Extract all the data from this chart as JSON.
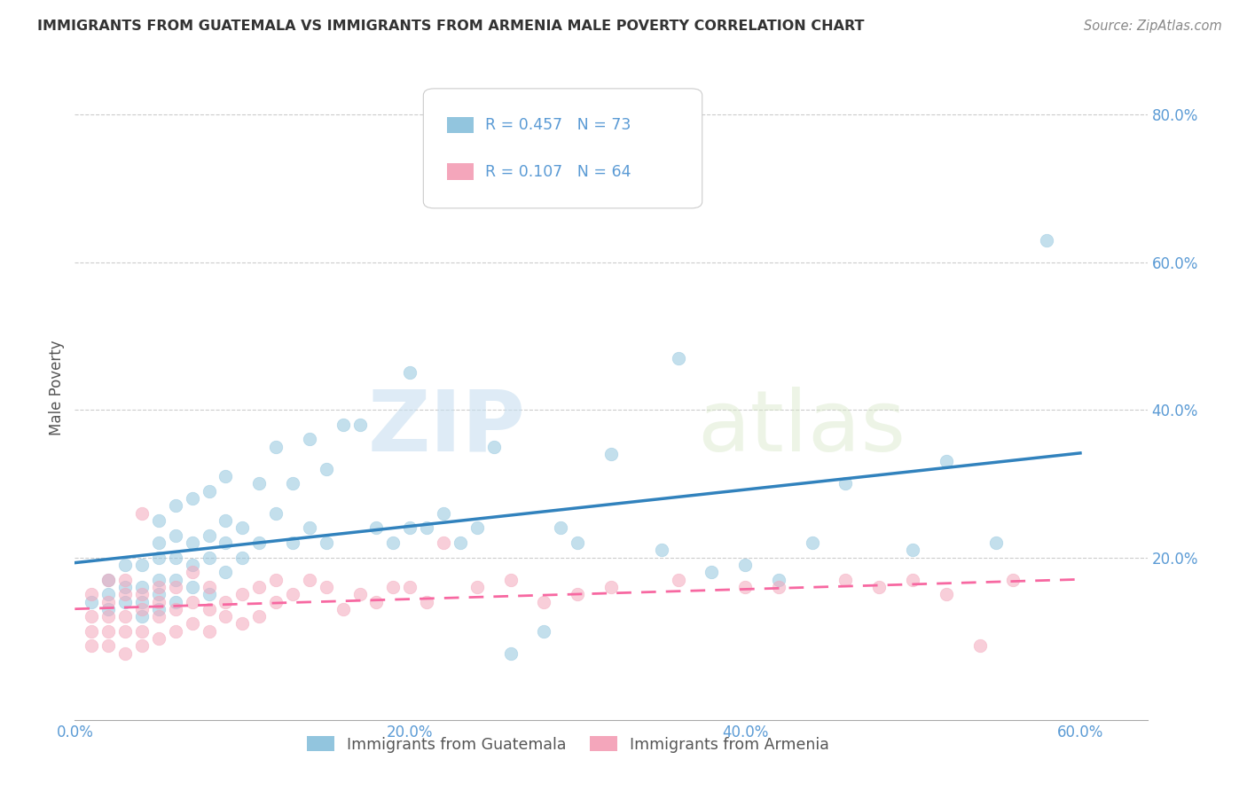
{
  "title": "IMMIGRANTS FROM GUATEMALA VS IMMIGRANTS FROM ARMENIA MALE POVERTY CORRELATION CHART",
  "source": "Source: ZipAtlas.com",
  "ylabel": "Male Poverty",
  "xlim": [
    0.0,
    0.64
  ],
  "ylim": [
    -0.02,
    0.88
  ],
  "xtick_labels": [
    "0.0%",
    "",
    "20.0%",
    "",
    "40.0%",
    "",
    "60.0%"
  ],
  "xtick_positions": [
    0.0,
    0.1,
    0.2,
    0.3,
    0.4,
    0.5,
    0.6
  ],
  "ytick_labels": [
    "20.0%",
    "40.0%",
    "60.0%",
    "80.0%"
  ],
  "ytick_positions": [
    0.2,
    0.4,
    0.6,
    0.8
  ],
  "guatemala_color": "#92c5de",
  "armenia_color": "#f4a6bb",
  "guatemala_line_color": "#3182bd",
  "armenia_line_color": "#f768a1",
  "guatemala_R": 0.457,
  "guatemala_N": 73,
  "armenia_R": 0.107,
  "armenia_N": 64,
  "legend_label_guatemala": "Immigrants from Guatemala",
  "legend_label_armenia": "Immigrants from Armenia",
  "watermark_zip": "ZIP",
  "watermark_atlas": "atlas",
  "guatemala_points_x": [
    0.01,
    0.02,
    0.02,
    0.02,
    0.03,
    0.03,
    0.03,
    0.04,
    0.04,
    0.04,
    0.04,
    0.05,
    0.05,
    0.05,
    0.05,
    0.05,
    0.05,
    0.06,
    0.06,
    0.06,
    0.06,
    0.06,
    0.07,
    0.07,
    0.07,
    0.07,
    0.08,
    0.08,
    0.08,
    0.08,
    0.09,
    0.09,
    0.09,
    0.09,
    0.1,
    0.1,
    0.11,
    0.11,
    0.12,
    0.12,
    0.13,
    0.13,
    0.14,
    0.14,
    0.15,
    0.15,
    0.16,
    0.17,
    0.18,
    0.19,
    0.2,
    0.2,
    0.21,
    0.22,
    0.23,
    0.24,
    0.25,
    0.26,
    0.28,
    0.29,
    0.3,
    0.32,
    0.35,
    0.36,
    0.38,
    0.4,
    0.42,
    0.44,
    0.46,
    0.5,
    0.52,
    0.55,
    0.58
  ],
  "guatemala_points_y": [
    0.14,
    0.13,
    0.15,
    0.17,
    0.14,
    0.16,
    0.19,
    0.12,
    0.14,
    0.16,
    0.19,
    0.13,
    0.15,
    0.17,
    0.2,
    0.22,
    0.25,
    0.14,
    0.17,
    0.2,
    0.23,
    0.27,
    0.16,
    0.19,
    0.22,
    0.28,
    0.15,
    0.2,
    0.23,
    0.29,
    0.18,
    0.22,
    0.25,
    0.31,
    0.2,
    0.24,
    0.22,
    0.3,
    0.26,
    0.35,
    0.22,
    0.3,
    0.24,
    0.36,
    0.22,
    0.32,
    0.38,
    0.38,
    0.24,
    0.22,
    0.24,
    0.45,
    0.24,
    0.26,
    0.22,
    0.24,
    0.35,
    0.07,
    0.1,
    0.24,
    0.22,
    0.34,
    0.21,
    0.47,
    0.18,
    0.19,
    0.17,
    0.22,
    0.3,
    0.21,
    0.33,
    0.22,
    0.63
  ],
  "armenia_points_x": [
    0.01,
    0.01,
    0.01,
    0.01,
    0.02,
    0.02,
    0.02,
    0.02,
    0.02,
    0.03,
    0.03,
    0.03,
    0.03,
    0.03,
    0.04,
    0.04,
    0.04,
    0.04,
    0.04,
    0.05,
    0.05,
    0.05,
    0.05,
    0.06,
    0.06,
    0.06,
    0.07,
    0.07,
    0.07,
    0.08,
    0.08,
    0.08,
    0.09,
    0.09,
    0.1,
    0.1,
    0.11,
    0.11,
    0.12,
    0.12,
    0.13,
    0.14,
    0.15,
    0.16,
    0.17,
    0.18,
    0.19,
    0.2,
    0.21,
    0.22,
    0.24,
    0.26,
    0.28,
    0.3,
    0.32,
    0.36,
    0.4,
    0.42,
    0.46,
    0.48,
    0.5,
    0.52,
    0.54,
    0.56
  ],
  "armenia_points_y": [
    0.08,
    0.1,
    0.12,
    0.15,
    0.08,
    0.1,
    0.12,
    0.14,
    0.17,
    0.07,
    0.1,
    0.12,
    0.15,
    0.17,
    0.08,
    0.1,
    0.13,
    0.15,
    0.26,
    0.09,
    0.12,
    0.14,
    0.16,
    0.1,
    0.13,
    0.16,
    0.11,
    0.14,
    0.18,
    0.1,
    0.13,
    0.16,
    0.12,
    0.14,
    0.11,
    0.15,
    0.12,
    0.16,
    0.14,
    0.17,
    0.15,
    0.17,
    0.16,
    0.13,
    0.15,
    0.14,
    0.16,
    0.16,
    0.14,
    0.22,
    0.16,
    0.17,
    0.14,
    0.15,
    0.16,
    0.17,
    0.16,
    0.16,
    0.17,
    0.16,
    0.17,
    0.15,
    0.08,
    0.17
  ]
}
